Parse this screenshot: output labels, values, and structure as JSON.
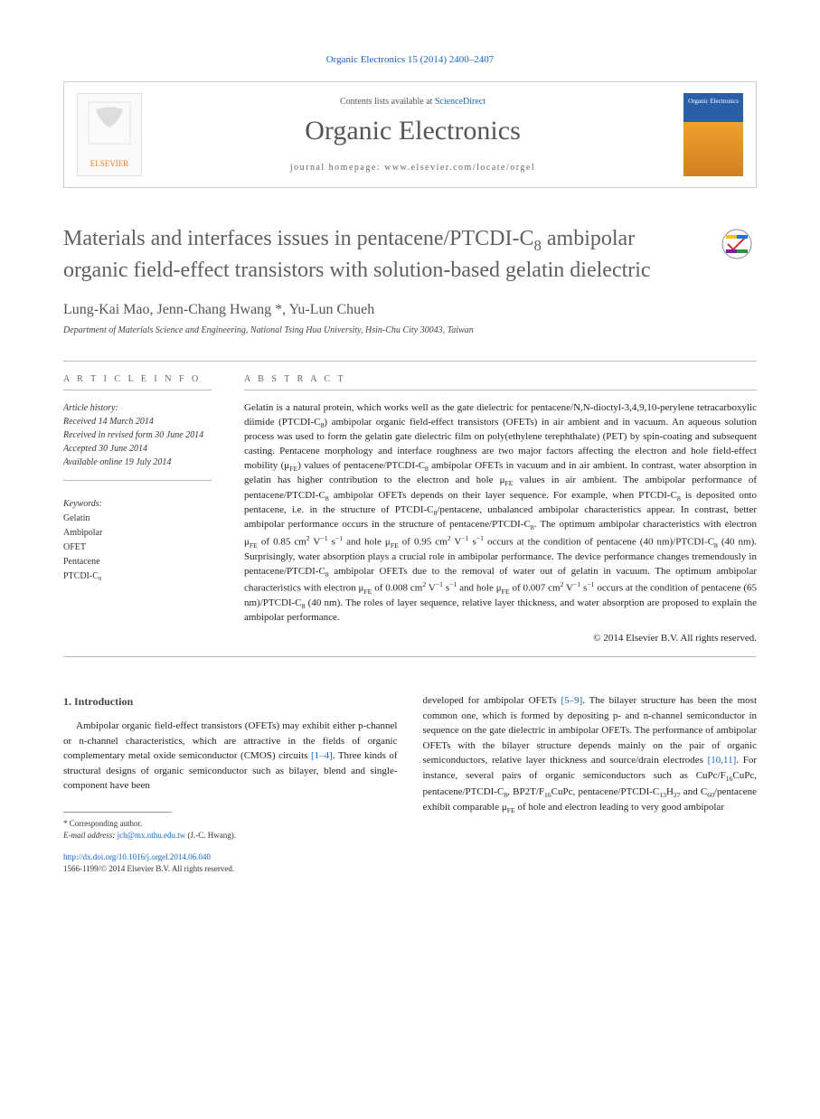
{
  "journal_ref": "Organic Electronics 15 (2014) 2400–2407",
  "header": {
    "contents_prefix": "Contents lists available at ",
    "contents_link": "ScienceDirect",
    "journal_name": "Organic Electronics",
    "homepage_prefix": "journal homepage: ",
    "homepage_url": "www.elsevier.com/locate/orgel",
    "elsevier_label": "ELSEVIER",
    "cover_label": "Organic Electronics"
  },
  "article": {
    "title_html": "Materials and interfaces issues in pentacene/PTCDI-C<sub>8</sub> ambipolar organic field-effect transistors with solution-based gelatin dielectric",
    "crossmark_label": "CrossMark",
    "authors": "Lung-Kai Mao, Jenn-Chang Hwang *, Yu-Lun Chueh",
    "affiliation": "Department of Materials Science and Engineering, National Tsing Hua University, Hsin-Chu City 30043, Taiwan"
  },
  "info": {
    "label": "A R T I C L E   I N F O",
    "history_label": "Article history:",
    "received": "Received 14 March 2014",
    "revised": "Received in revised form 30 June 2014",
    "accepted": "Accepted 30 June 2014",
    "online": "Available online 19 July 2014",
    "keywords_label": "Keywords:",
    "keywords": [
      "Gelatin",
      "Ambipolar",
      "OFET",
      "Pentacene",
      "PTCDI-C₈"
    ]
  },
  "abstract": {
    "label": "A B S T R A C T",
    "text_html": "Gelatin is a natural protein, which works well as the gate dielectric for pentacene/N,N-dioctyl-3,4,9,10-perylene tetracarboxylic diimide (PTCDI-C<sub>8</sub>) ambipolar organic field-effect transistors (OFETs) in air ambient and in vacuum. An aqueous solution process was used to form the gelatin gate dielectric film on poly(ethylene terephthalate) (PET) by spin-coating and subsequent casting. Pentacene morphology and interface roughness are two major factors affecting the electron and hole field-effect mobility (μ<sub>FE</sub>) values of pentacene/PTCDI-C<sub>8</sub> ambipolar OFETs in vacuum and in air ambient. In contrast, water absorption in gelatin has higher contribution to the electron and hole μ<sub>FE</sub> values in air ambient. The ambipolar performance of pentacene/PTCDI-C<sub>8</sub> ambipolar OFETs depends on their layer sequence. For example, when PTCDI-C<sub>8</sub> is deposited onto pentacene, i.e. in the structure of PTCDI-C<sub>8</sub>/pentacene, unbalanced ambipolar characteristics appear. In contrast, better ambipolar performance occurs in the structure of pentacene/PTCDI-C<sub>8</sub>. The optimum ambipolar characteristics with electron μ<sub>FE</sub> of 0.85 cm<sup>2</sup> V<sup>−1</sup> s<sup>−1</sup> and hole μ<sub>FE</sub> of 0.95 cm<sup>2</sup> V<sup>−1</sup> s<sup>−1</sup> occurs at the condition of pentacene (40 nm)/PTCDI-C<sub>8</sub> (40 nm). Surprisingly, water absorption plays a crucial role in ambipolar performance. The device performance changes tremendously in pentacene/PTCDI-C<sub>8</sub> ambipolar OFETs due to the removal of water out of gelatin in vacuum. The optimum ambipolar characteristics with electron μ<sub>FE</sub> of 0.008 cm<sup>2</sup> V<sup>−1</sup> s<sup>−1</sup> and hole μ<sub>FE</sub> of 0.007 cm<sup>2</sup> V<sup>−1</sup> s<sup>−1</sup> occurs at the condition of pentacene (65 nm)/PTCDI-C<sub>8</sub> (40 nm). The roles of layer sequence, relative layer thickness, and water absorption are proposed to explain the ambipolar performance.",
    "copyright": "© 2014 Elsevier B.V. All rights reserved."
  },
  "body": {
    "intro_heading": "1. Introduction",
    "col1_html": "Ambipolar organic field-effect transistors (OFETs) may exhibit either p-channel or n-channel characteristics, which are attractive in the fields of organic complementary metal oxide semiconductor (CMOS) circuits <span class=\"ref-link\">[1–4]</span>. Three kinds of structural designs of organic semiconductor such as bilayer, blend and single-component have been",
    "col2_html": "developed for ambipolar OFETs <span class=\"ref-link\">[5–9]</span>. The bilayer structure has been the most common one, which is formed by depositing p- and n-channel semiconductor in sequence on the gate dielectric in ambipolar OFETs. The performance of ambipolar OFETs with the bilayer structure depends mainly on the pair of organic semiconductors, relative layer thickness and source/drain electrodes <span class=\"ref-link\">[10,11]</span>. For instance, several pairs of organic semiconductors such as CuPc/F<sub>16</sub>CuPc, pentacene/PTCDI-C<sub>8</sub>, BP2T/F<sub>16</sub>CuPc, pentacene/PTCDI-C<sub>13</sub>H<sub>27</sub> and C<sub>60</sub>/pentacene exhibit comparable μ<sub>FE</sub> of hole and electron leading to very good ambipolar"
  },
  "footnote": {
    "corr": "* Corresponding author.",
    "email_label": "E-mail address: ",
    "email": "jch@mx.nthu.edu.tw",
    "email_name": " (J.-C. Hwang)."
  },
  "footer": {
    "doi": "http://dx.doi.org/10.1016/j.orgel.2014.06.040",
    "issn_line": "1566-1199/© 2014 Elsevier B.V. All rights reserved."
  }
}
